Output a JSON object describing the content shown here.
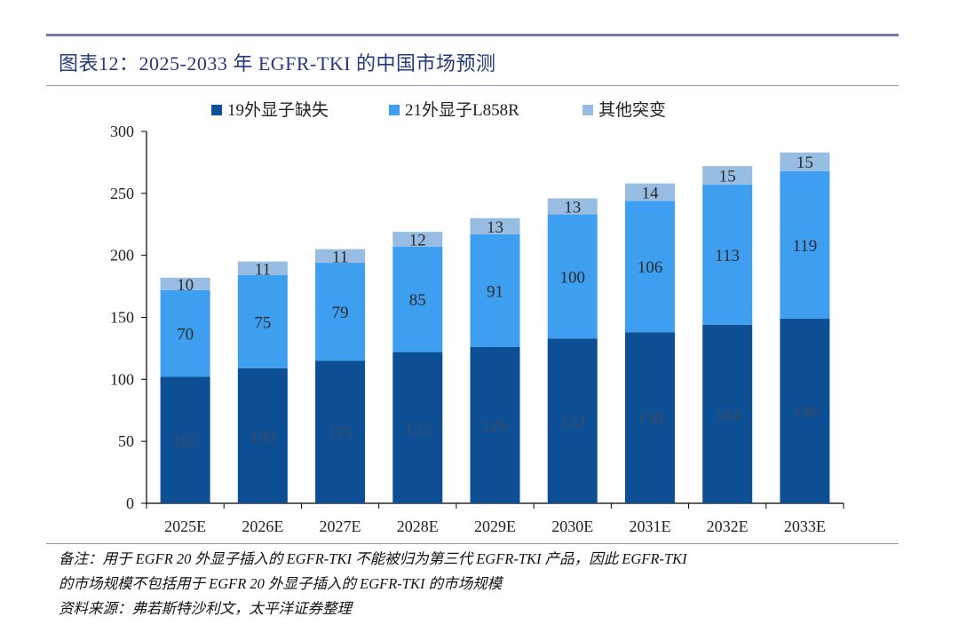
{
  "title": "图表12：2025-2033 年 EGFR-TKI 的中国市场预测",
  "notes": {
    "line1": "备注：用于 EGFR 20 外显子插入的 EGFR-TKI 不能被归为第三代 EGFR-TKI 产品，因此 EGFR-TKI",
    "line2": "的市场规模不包括用于 EGFR 20 外显子插入的 EGFR-TKI 的市场规模",
    "source": "资料来源：弗若斯特沙利文，太平洋证券整理"
  },
  "colors": {
    "series1": "#0d4f95",
    "series2": "#3e9ff0",
    "series3": "#98bde3",
    "title": "#233a7c",
    "rule": "#6f7aa6"
  },
  "chart_data": {
    "type": "bar",
    "stacked": true,
    "title": "",
    "xlabel": "",
    "ylabel": "",
    "ylim": [
      0,
      300
    ],
    "yticks": [
      0,
      50,
      100,
      150,
      200,
      250,
      300
    ],
    "legend_position": "top",
    "categories": [
      "2025E",
      "2026E",
      "2027E",
      "2028E",
      "2029E",
      "2030E",
      "2031E",
      "2032E",
      "2033E"
    ],
    "series": [
      {
        "name": "19外显子缺失",
        "values": [
          102,
          109,
          115,
          122,
          126,
          133,
          138,
          144,
          149
        ]
      },
      {
        "name": "21外显子L858R",
        "values": [
          70,
          75,
          79,
          85,
          91,
          100,
          106,
          113,
          119
        ]
      },
      {
        "name": "其他突变",
        "values": [
          10,
          11,
          11,
          12,
          13,
          13,
          14,
          15,
          15
        ]
      }
    ]
  }
}
